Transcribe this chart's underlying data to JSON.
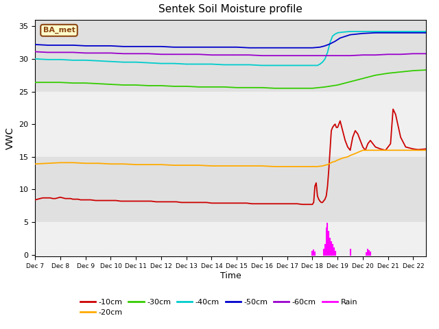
{
  "title": "Sentek Soil Moisture profile",
  "xlabel": "Time",
  "ylabel": "VWC",
  "label_text": "BA_met",
  "ylim": [
    -0.3,
    36
  ],
  "xlim": [
    0,
    15.5
  ],
  "background_bands": [
    [
      25,
      36,
      "#e0e0e0"
    ],
    [
      15,
      25,
      "#f0f0f0"
    ],
    [
      5,
      15,
      "#e0e0e0"
    ],
    [
      0,
      5,
      "#f0f0f0"
    ]
  ],
  "x_tick_labels": [
    "Dec 7",
    "Dec 8",
    "Dec 9",
    "Dec 10",
    "Dec 11",
    "Dec 12",
    "Dec 13",
    "Dec 14",
    "Dec 15",
    "Dec 16",
    "Dec 17",
    "Dec 18",
    "Dec 19",
    "Dec 20",
    "Dec 21",
    "Dec 22"
  ],
  "colors": {
    "10cm": "#cc0000",
    "20cm": "#ffaa00",
    "30cm": "#33cc00",
    "40cm": "#00cccc",
    "50cm": "#0000cc",
    "60cm": "#9900cc",
    "rain": "#ff00ff"
  },
  "series": {
    "10cm": {
      "x": [
        0,
        0.1,
        0.2,
        0.3,
        0.4,
        0.5,
        0.6,
        0.7,
        0.8,
        0.9,
        1.0,
        1.1,
        1.2,
        1.3,
        1.4,
        1.5,
        1.6,
        1.7,
        1.8,
        1.9,
        2.0,
        2.2,
        2.4,
        2.6,
        2.8,
        3.0,
        3.2,
        3.4,
        3.6,
        3.8,
        4.0,
        4.2,
        4.4,
        4.6,
        4.8,
        5.0,
        5.2,
        5.4,
        5.6,
        5.8,
        6.0,
        6.2,
        6.4,
        6.6,
        6.8,
        7.0,
        7.2,
        7.4,
        7.6,
        7.8,
        8.0,
        8.2,
        8.4,
        8.6,
        8.8,
        9.0,
        9.2,
        9.4,
        9.6,
        9.8,
        10.0,
        10.2,
        10.4,
        10.6,
        10.8,
        11.0,
        11.05,
        11.1,
        11.15,
        11.2,
        11.25,
        11.3,
        11.35,
        11.4,
        11.5,
        11.55,
        11.6,
        11.65,
        11.7,
        11.75,
        11.8,
        11.85,
        11.9,
        11.95,
        12.0,
        12.1,
        12.2,
        12.3,
        12.4,
        12.5,
        12.6,
        12.7,
        12.8,
        12.9,
        13.0,
        13.1,
        13.2,
        13.3,
        13.5,
        13.7,
        13.9,
        14.0,
        14.1,
        14.2,
        14.3,
        14.5,
        14.7,
        15.0,
        15.2,
        15.5
      ],
      "y": [
        8.4,
        8.5,
        8.6,
        8.7,
        8.7,
        8.7,
        8.7,
        8.6,
        8.6,
        8.7,
        8.8,
        8.7,
        8.6,
        8.6,
        8.6,
        8.5,
        8.5,
        8.5,
        8.4,
        8.4,
        8.4,
        8.4,
        8.3,
        8.3,
        8.3,
        8.3,
        8.3,
        8.2,
        8.2,
        8.2,
        8.2,
        8.2,
        8.2,
        8.2,
        8.1,
        8.1,
        8.1,
        8.1,
        8.1,
        8.0,
        8.0,
        8.0,
        8.0,
        8.0,
        8.0,
        7.9,
        7.9,
        7.9,
        7.9,
        7.9,
        7.9,
        7.9,
        7.9,
        7.8,
        7.8,
        7.8,
        7.8,
        7.8,
        7.8,
        7.8,
        7.8,
        7.8,
        7.8,
        7.7,
        7.7,
        7.7,
        8.0,
        10.5,
        11.0,
        9.0,
        8.5,
        8.2,
        8.0,
        8.0,
        8.5,
        9.0,
        10.5,
        13.0,
        16.0,
        19.0,
        19.5,
        19.8,
        20.0,
        19.5,
        19.5,
        20.5,
        19.0,
        17.5,
        16.5,
        16.0,
        18.0,
        19.0,
        18.5,
        17.5,
        16.5,
        16.0,
        17.0,
        17.5,
        16.5,
        16.2,
        16.0,
        16.5,
        17.0,
        22.3,
        21.5,
        18.0,
        16.5,
        16.2,
        16.1,
        16.2
      ]
    },
    "20cm": {
      "x": [
        0,
        0.5,
        1.0,
        1.5,
        2.0,
        2.5,
        3.0,
        3.5,
        4.0,
        4.5,
        5.0,
        5.5,
        6.0,
        6.5,
        7.0,
        7.5,
        8.0,
        8.5,
        9.0,
        9.5,
        10.0,
        10.5,
        11.0,
        11.2,
        11.4,
        11.5,
        11.6,
        11.7,
        11.8,
        11.9,
        12.0,
        12.2,
        12.4,
        12.5,
        12.7,
        13.0,
        13.5,
        14.0,
        14.5,
        15.0,
        15.5
      ],
      "y": [
        13.9,
        14.0,
        14.1,
        14.1,
        14.0,
        14.0,
        13.9,
        13.9,
        13.8,
        13.8,
        13.8,
        13.7,
        13.7,
        13.7,
        13.6,
        13.6,
        13.6,
        13.6,
        13.6,
        13.5,
        13.5,
        13.5,
        13.5,
        13.5,
        13.6,
        13.7,
        13.8,
        14.0,
        14.2,
        14.3,
        14.5,
        14.8,
        15.0,
        15.2,
        15.5,
        16.0,
        16.0,
        16.0,
        16.0,
        16.0,
        16.0
      ]
    },
    "30cm": {
      "x": [
        0,
        0.5,
        1.0,
        1.5,
        2.0,
        2.5,
        3.0,
        3.5,
        4.0,
        4.5,
        5.0,
        5.5,
        6.0,
        6.5,
        7.0,
        7.5,
        8.0,
        8.5,
        9.0,
        9.5,
        10.0,
        10.5,
        11.0,
        11.5,
        12.0,
        12.5,
        13.0,
        13.5,
        14.0,
        14.5,
        15.0,
        15.5
      ],
      "y": [
        26.4,
        26.4,
        26.4,
        26.3,
        26.3,
        26.2,
        26.1,
        26.0,
        26.0,
        25.9,
        25.9,
        25.8,
        25.8,
        25.7,
        25.7,
        25.7,
        25.6,
        25.6,
        25.6,
        25.5,
        25.5,
        25.5,
        25.5,
        25.7,
        26.0,
        26.5,
        27.0,
        27.5,
        27.8,
        28.0,
        28.2,
        28.3
      ]
    },
    "40cm": {
      "x": [
        0,
        0.5,
        1.0,
        1.5,
        2.0,
        2.5,
        3.0,
        3.5,
        4.0,
        4.5,
        5.0,
        5.5,
        6.0,
        6.5,
        7.0,
        7.5,
        8.0,
        8.5,
        9.0,
        9.5,
        10.0,
        10.5,
        11.0,
        11.2,
        11.3,
        11.4,
        11.5,
        11.6,
        11.7,
        11.8,
        11.9,
        12.0,
        12.2,
        12.5,
        13.0,
        13.5,
        14.0,
        14.5,
        15.0,
        15.5
      ],
      "y": [
        30.0,
        29.9,
        29.9,
        29.8,
        29.8,
        29.7,
        29.6,
        29.5,
        29.5,
        29.4,
        29.3,
        29.3,
        29.2,
        29.2,
        29.2,
        29.1,
        29.1,
        29.1,
        29.0,
        29.0,
        29.0,
        29.0,
        29.0,
        29.0,
        29.2,
        29.5,
        30.0,
        31.0,
        32.5,
        33.5,
        33.8,
        34.0,
        34.1,
        34.2,
        34.2,
        34.2,
        34.2,
        34.2,
        34.2,
        34.2
      ]
    },
    "50cm": {
      "x": [
        0,
        0.5,
        1.0,
        1.5,
        2.0,
        2.5,
        3.0,
        3.5,
        4.0,
        4.5,
        5.0,
        5.5,
        6.0,
        6.5,
        7.0,
        7.5,
        8.0,
        8.5,
        9.0,
        9.5,
        10.0,
        10.5,
        11.0,
        11.3,
        11.5,
        11.7,
        11.9,
        12.1,
        12.5,
        13.0,
        13.5,
        14.0,
        14.5,
        15.0,
        15.5
      ],
      "y": [
        32.2,
        32.1,
        32.1,
        32.1,
        32.0,
        32.0,
        32.0,
        31.9,
        31.9,
        31.9,
        31.9,
        31.8,
        31.8,
        31.8,
        31.8,
        31.8,
        31.8,
        31.7,
        31.7,
        31.7,
        31.7,
        31.7,
        31.7,
        31.8,
        32.0,
        32.3,
        32.7,
        33.2,
        33.7,
        33.9,
        34.0,
        34.0,
        34.0,
        34.0,
        34.0
      ]
    },
    "60cm": {
      "x": [
        0,
        0.5,
        1.0,
        1.5,
        2.0,
        2.5,
        3.0,
        3.5,
        4.0,
        4.5,
        5.0,
        5.5,
        6.0,
        6.5,
        7.0,
        7.5,
        8.0,
        8.5,
        9.0,
        9.5,
        10.0,
        10.5,
        11.0,
        11.5,
        12.0,
        12.5,
        13.0,
        13.5,
        14.0,
        14.5,
        15.0,
        15.5
      ],
      "y": [
        31.1,
        31.0,
        31.0,
        31.0,
        30.9,
        30.9,
        30.9,
        30.8,
        30.8,
        30.8,
        30.7,
        30.7,
        30.7,
        30.7,
        30.6,
        30.6,
        30.6,
        30.6,
        30.5,
        30.5,
        30.5,
        30.5,
        30.5,
        30.5,
        30.5,
        30.5,
        30.6,
        30.6,
        30.7,
        30.7,
        30.8,
        30.8
      ]
    },
    "rain": {
      "x": [
        11.0,
        11.05,
        11.1,
        11.45,
        11.5,
        11.55,
        11.6,
        11.65,
        11.7,
        11.75,
        11.8,
        11.85,
        11.9,
        12.5,
        13.15,
        13.2,
        13.25,
        13.3
      ],
      "y": [
        0.5,
        0.7,
        0.4,
        0.8,
        1.5,
        4.0,
        4.8,
        3.5,
        2.5,
        2.0,
        1.5,
        1.0,
        0.5,
        0.8,
        0.3,
        0.8,
        0.6,
        0.4
      ]
    }
  },
  "yticks": [
    0,
    5,
    10,
    15,
    20,
    25,
    30,
    35
  ],
  "legend_items": [
    [
      "-10cm",
      "#cc0000"
    ],
    [
      "-20cm",
      "#ffaa00"
    ],
    [
      "-30cm",
      "#33cc00"
    ],
    [
      "-40cm",
      "#00cccc"
    ],
    [
      "-50cm",
      "#0000cc"
    ],
    [
      "-60cm",
      "#9900cc"
    ]
  ]
}
